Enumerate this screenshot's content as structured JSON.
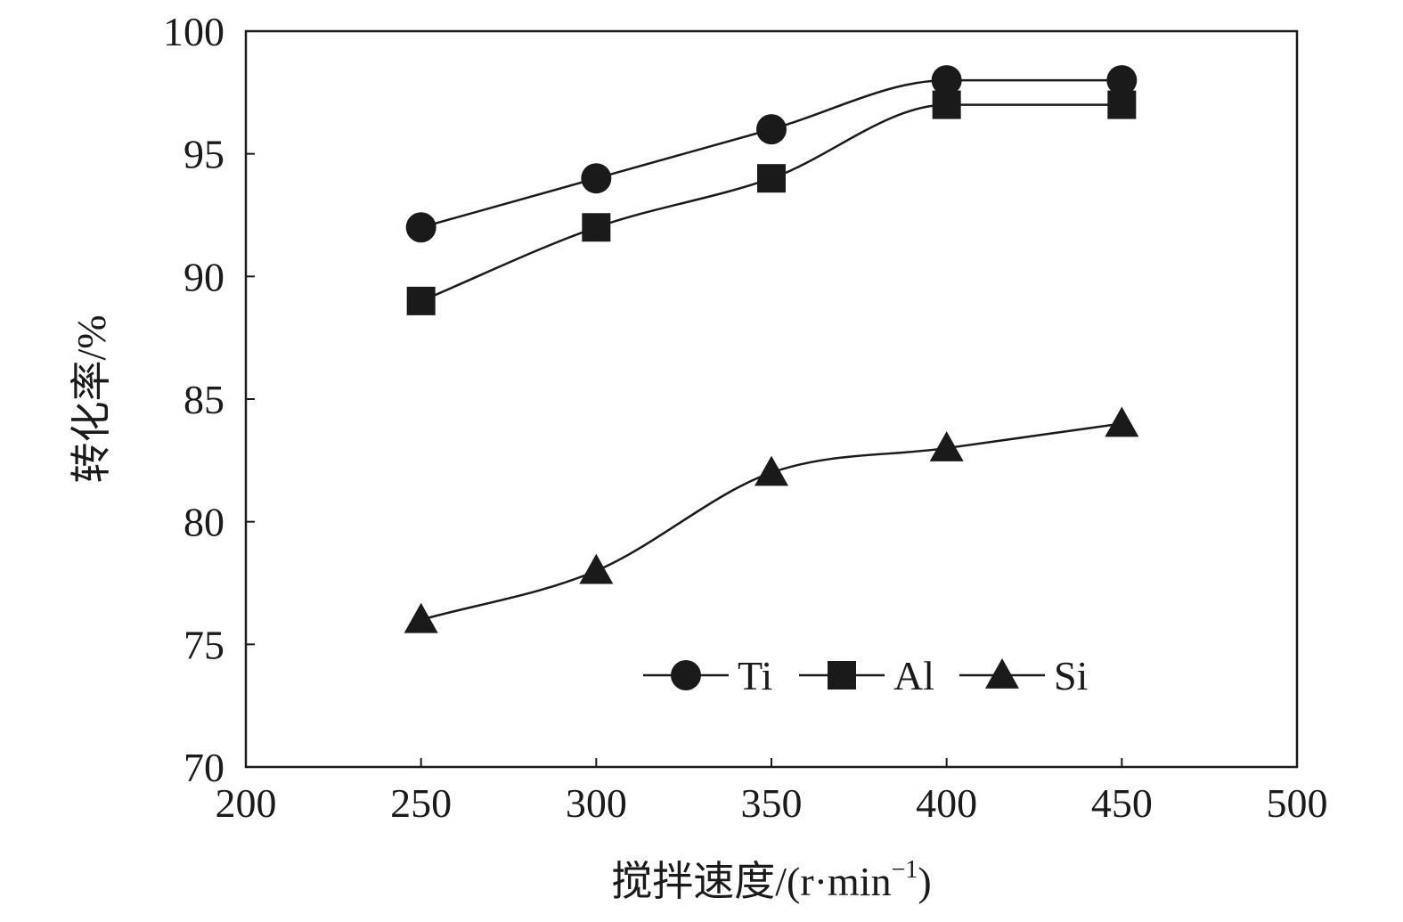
{
  "chart_data": {
    "type": "line",
    "title": "",
    "xlabel": "搅拌速度/(r·min",
    "xlabel_sup": "−1",
    "xlabel_close": ")",
    "ylabel": "转化率/%",
    "xlim": [
      200,
      500
    ],
    "ylim": [
      70,
      100
    ],
    "xticks": [
      "200",
      "250",
      "300",
      "350",
      "400",
      "450",
      "500"
    ],
    "yticks": [
      "70",
      "75",
      "80",
      "85",
      "90",
      "95",
      "100"
    ],
    "x": [
      250,
      300,
      350,
      400,
      450
    ],
    "series": [
      {
        "name": "Ti",
        "marker": "circle",
        "values": [
          92,
          94,
          96,
          98,
          98
        ]
      },
      {
        "name": "Al",
        "marker": "square",
        "values": [
          89,
          92,
          94,
          97,
          97
        ]
      },
      {
        "name": "Si",
        "marker": "triangle",
        "values": [
          76,
          78,
          82,
          83,
          84
        ]
      }
    ],
    "grid": false,
    "legend_position": "bottom-right",
    "colors": {
      "line": "#1a1a1a",
      "marker": "#1a1a1a",
      "background": "#ffffff"
    }
  }
}
